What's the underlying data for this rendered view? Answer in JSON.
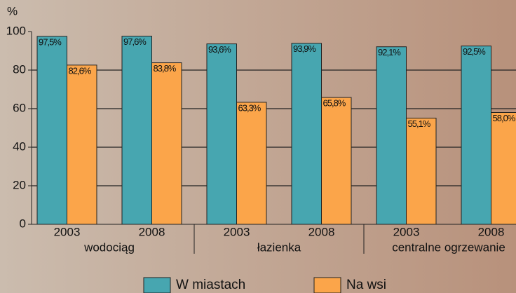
{
  "chart_data": {
    "type": "bar",
    "y_label": "%",
    "categories": [
      "2003",
      "2008",
      "2003",
      "2008",
      "2003",
      "2008"
    ],
    "groups": [
      "wodociąg",
      "łazienka",
      "centralne ogrzewanie"
    ],
    "series": [
      {
        "name": "W miastach",
        "color": "#47a6b0",
        "values": [
          97.5,
          97.6,
          93.6,
          93.9,
          92.1,
          92.5
        ],
        "value_labels": [
          "97,5%",
          "97,6%",
          "93,6%",
          "93,9%",
          "92,1%",
          "92,5%"
        ]
      },
      {
        "name": "Na wsi",
        "color": "#fba54a",
        "values": [
          82.6,
          83.8,
          63.3,
          65.8,
          55.1,
          58.0
        ],
        "value_labels": [
          "82,6%",
          "83,8%",
          "63,3%",
          "65,8%",
          "55,1%",
          "58,0%"
        ]
      }
    ],
    "ylim": [
      0,
      100
    ],
    "yticks": [
      0,
      20,
      40,
      60,
      80,
      100
    ],
    "grid": true
  }
}
